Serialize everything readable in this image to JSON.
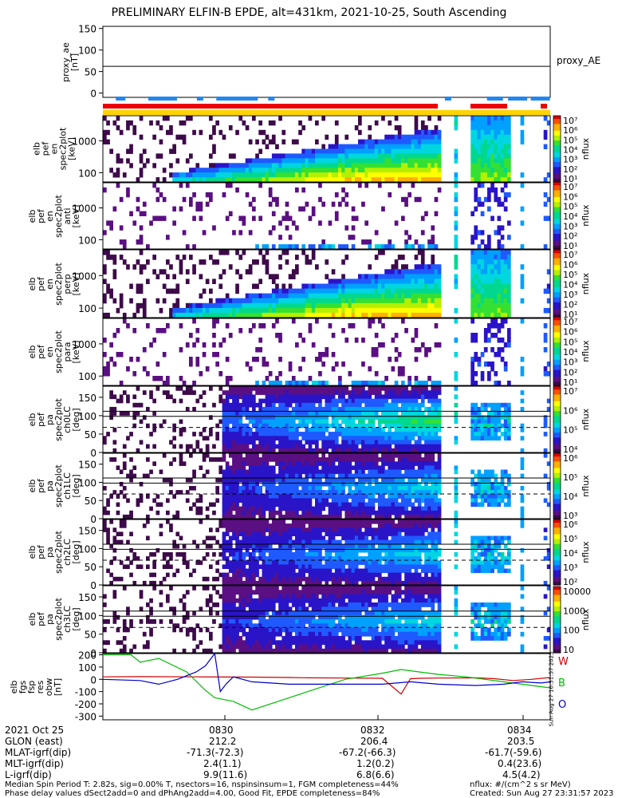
{
  "title": "PRELIMINARY ELFIN-B EPDE, alt=431km, 2021-10-25, South Ascending",
  "chart_data": {
    "type": "heatmap",
    "date_label": "2021 Oct 25",
    "time_ticks": [
      "0830",
      "0832",
      "0834"
    ],
    "x_range_min": [
      0,
      240
    ],
    "proxy_ae": {
      "ylabel": "proxy_ae\n[nT]",
      "legend": "proxy_AE",
      "yticks": [
        "150",
        "100",
        "50",
        "0"
      ],
      "ylim": [
        -10,
        155
      ],
      "value": 62
    },
    "panels": [
      {
        "id": "pef_en_spec2plot",
        "ylabel": [
          "elb",
          "pef",
          "en",
          "spec2plot",
          "[keV]"
        ],
        "yticks": [
          "1000",
          "100"
        ],
        "cbar_ticks": [
          "10⁷",
          "10⁶",
          "10⁵",
          "10⁴",
          "10³",
          "10²",
          "10¹"
        ],
        "cbar_label": "nflux"
      },
      {
        "id": "pef_en_spec2plot_anti",
        "ylabel": [
          "elb",
          "pef",
          "en",
          "spec2plot",
          "anti",
          "[keV]"
        ],
        "yticks": [
          "1000",
          "100"
        ],
        "cbar_ticks": [
          "10⁷",
          "10⁶",
          "10⁵",
          "10⁴",
          "10³",
          "10²",
          "10¹"
        ],
        "cbar_label": "nflux"
      },
      {
        "id": "pef_en_spec2plot_perp",
        "ylabel": [
          "elb",
          "pef",
          "en",
          "spec2plot",
          "perp",
          "[keV]"
        ],
        "yticks": [
          "1000",
          "100"
        ],
        "cbar_ticks": [
          "10⁷",
          "10⁶",
          "10⁵",
          "10⁴",
          "10³",
          "10²",
          "10¹"
        ],
        "cbar_label": "nflux"
      },
      {
        "id": "pef_en_spec2plot_para",
        "ylabel": [
          "elb",
          "pef",
          "en",
          "spec2plot",
          "para",
          "[keV]"
        ],
        "yticks": [
          "1000",
          "100"
        ],
        "cbar_ticks": [
          "10⁷",
          "10⁶",
          "10⁵",
          "10⁴",
          "10³",
          "10²",
          "10¹"
        ],
        "cbar_label": "nflux"
      },
      {
        "id": "pef_pa_spec2plot_ch0LC",
        "ylabel": [
          "elb",
          "pef",
          "pa",
          "spec2plot",
          "ch0LC",
          "[deg]"
        ],
        "yticks": [
          "150",
          "100",
          "50",
          "0"
        ],
        "cbar_ticks": [
          "10⁷",
          "10⁶",
          "10⁵",
          "10⁴"
        ],
        "cbar_label": "nflux"
      },
      {
        "id": "pef_pa_spec2plot_ch1LC",
        "ylabel": [
          "elb",
          "pef",
          "pa",
          "spec2plot",
          "ch1LC",
          "[deg]"
        ],
        "yticks": [
          "150",
          "100",
          "50",
          "0"
        ],
        "cbar_ticks": [
          "10⁶",
          "10⁵",
          "10⁴",
          "10³"
        ],
        "cbar_label": "nflux"
      },
      {
        "id": "pef_pa_spec2plot_ch2LC",
        "ylabel": [
          "elb",
          "pef",
          "pa",
          "spec2plot",
          "ch2LC",
          "[deg]"
        ],
        "yticks": [
          "150",
          "100",
          "50",
          "0"
        ],
        "cbar_ticks": [
          "10⁶",
          "10⁵",
          "10⁴",
          "10³",
          "10²"
        ],
        "cbar_label": "nflux"
      },
      {
        "id": "pef_pa_spec2plot_ch3LC",
        "ylabel": [
          "elb",
          "pef",
          "pa",
          "spec2plot",
          "ch3LC",
          "[deg]"
        ],
        "yticks": [
          "150",
          "100",
          "50",
          "0"
        ],
        "cbar_ticks": [
          "10000",
          "1000",
          "100",
          "10"
        ],
        "cbar_label": "nflux"
      }
    ],
    "fgm": {
      "ylabel": [
        "elb",
        "fgs",
        "fsp",
        "res",
        "obw",
        "[nT]"
      ],
      "yticks": [
        "200",
        "100",
        "0",
        "-100",
        "-200",
        "-300"
      ],
      "ylim": [
        -330,
        210
      ],
      "legend": [
        {
          "name": "W",
          "color": "#cc0000"
        },
        {
          "name": "B",
          "color": "#00bb00"
        },
        {
          "name": "O",
          "color": "#0000cc"
        }
      ],
      "series": [
        {
          "name": "W",
          "color": "#cc0000",
          "x": [
            0,
            20,
            50,
            80,
            100,
            110,
            130,
            150,
            160,
            165,
            170,
            180,
            200,
            210,
            220,
            230,
            240
          ],
          "y": [
            20,
            22,
            20,
            18,
            15,
            12,
            10,
            8,
            -120,
            5,
            8,
            10,
            12,
            5,
            -10,
            0,
            15
          ]
        },
        {
          "name": "B",
          "color": "#00bb00",
          "x": [
            0,
            15,
            20,
            30,
            45,
            55,
            60,
            70,
            80,
            110,
            130,
            150,
            160,
            170,
            180,
            195,
            205,
            215,
            225,
            235,
            240
          ],
          "y": [
            200,
            200,
            140,
            170,
            60,
            -90,
            -150,
            -180,
            -250,
            -100,
            0,
            50,
            80,
            60,
            40,
            20,
            0,
            -20,
            -40,
            -60,
            -70
          ]
        },
        {
          "name": "O",
          "color": "#0000cc",
          "x": [
            0,
            20,
            30,
            40,
            50,
            55,
            60,
            63,
            66,
            70,
            80,
            100,
            130,
            150,
            165,
            180,
            200,
            215,
            225,
            235,
            240
          ],
          "y": [
            0,
            -10,
            -40,
            0,
            60,
            110,
            210,
            -100,
            -40,
            20,
            -20,
            -40,
            -40,
            -40,
            -20,
            -40,
            -50,
            -40,
            -20,
            -30,
            -20
          ]
        }
      ]
    }
  },
  "ephemeris": {
    "rows": [
      {
        "label": "GLON (east)",
        "values": [
          "212.2",
          "206.4",
          "203.5"
        ]
      },
      {
        "label": "MLAT-igrf(dip)",
        "values": [
          "-71.3(-72.3)",
          "-67.2(-66.3)",
          "-61.7(-59.6)"
        ]
      },
      {
        "label": "MLT-igrf(dip)",
        "values": [
          "2.4(1.1)",
          "1.2(0.2)",
          "0.4(23.6)"
        ]
      },
      {
        "label": "L-igrf(dip)",
        "values": [
          "9.9(11.6)",
          "6.8(6.6)",
          "4.5(4.2)"
        ]
      }
    ]
  },
  "footer": {
    "line1_left": "Median Spin Period T: 2.82s, sig=0.00% T, nsectors=16, nspinsinsum=1, FGM completeness=44%",
    "line2_left": "Phase delay values dSect2add=0 and dPhAng2add=4.00, Good Fit, EPDE completeness=84%",
    "line1_right": "nflux: #/(cm^2 s sr MeV)",
    "line2_right": "Created: Sun Aug 27 23:31:57 2023",
    "stamp": "Sun Aug 27 16:31:57 2023"
  },
  "colors": {
    "rainbow": [
      "#3d0a4a",
      "#5a0f82",
      "#2a14c8",
      "#1e5aff",
      "#00a0ff",
      "#00d6e0",
      "#00d890",
      "#33e033",
      "#b4f000",
      "#ffff00",
      "#ffb000",
      "#ff5000",
      "#e00000"
    ],
    "flag_red": "#ee0000",
    "flag_blue": "#2288ee",
    "flag_yellow": "#ffd400"
  }
}
